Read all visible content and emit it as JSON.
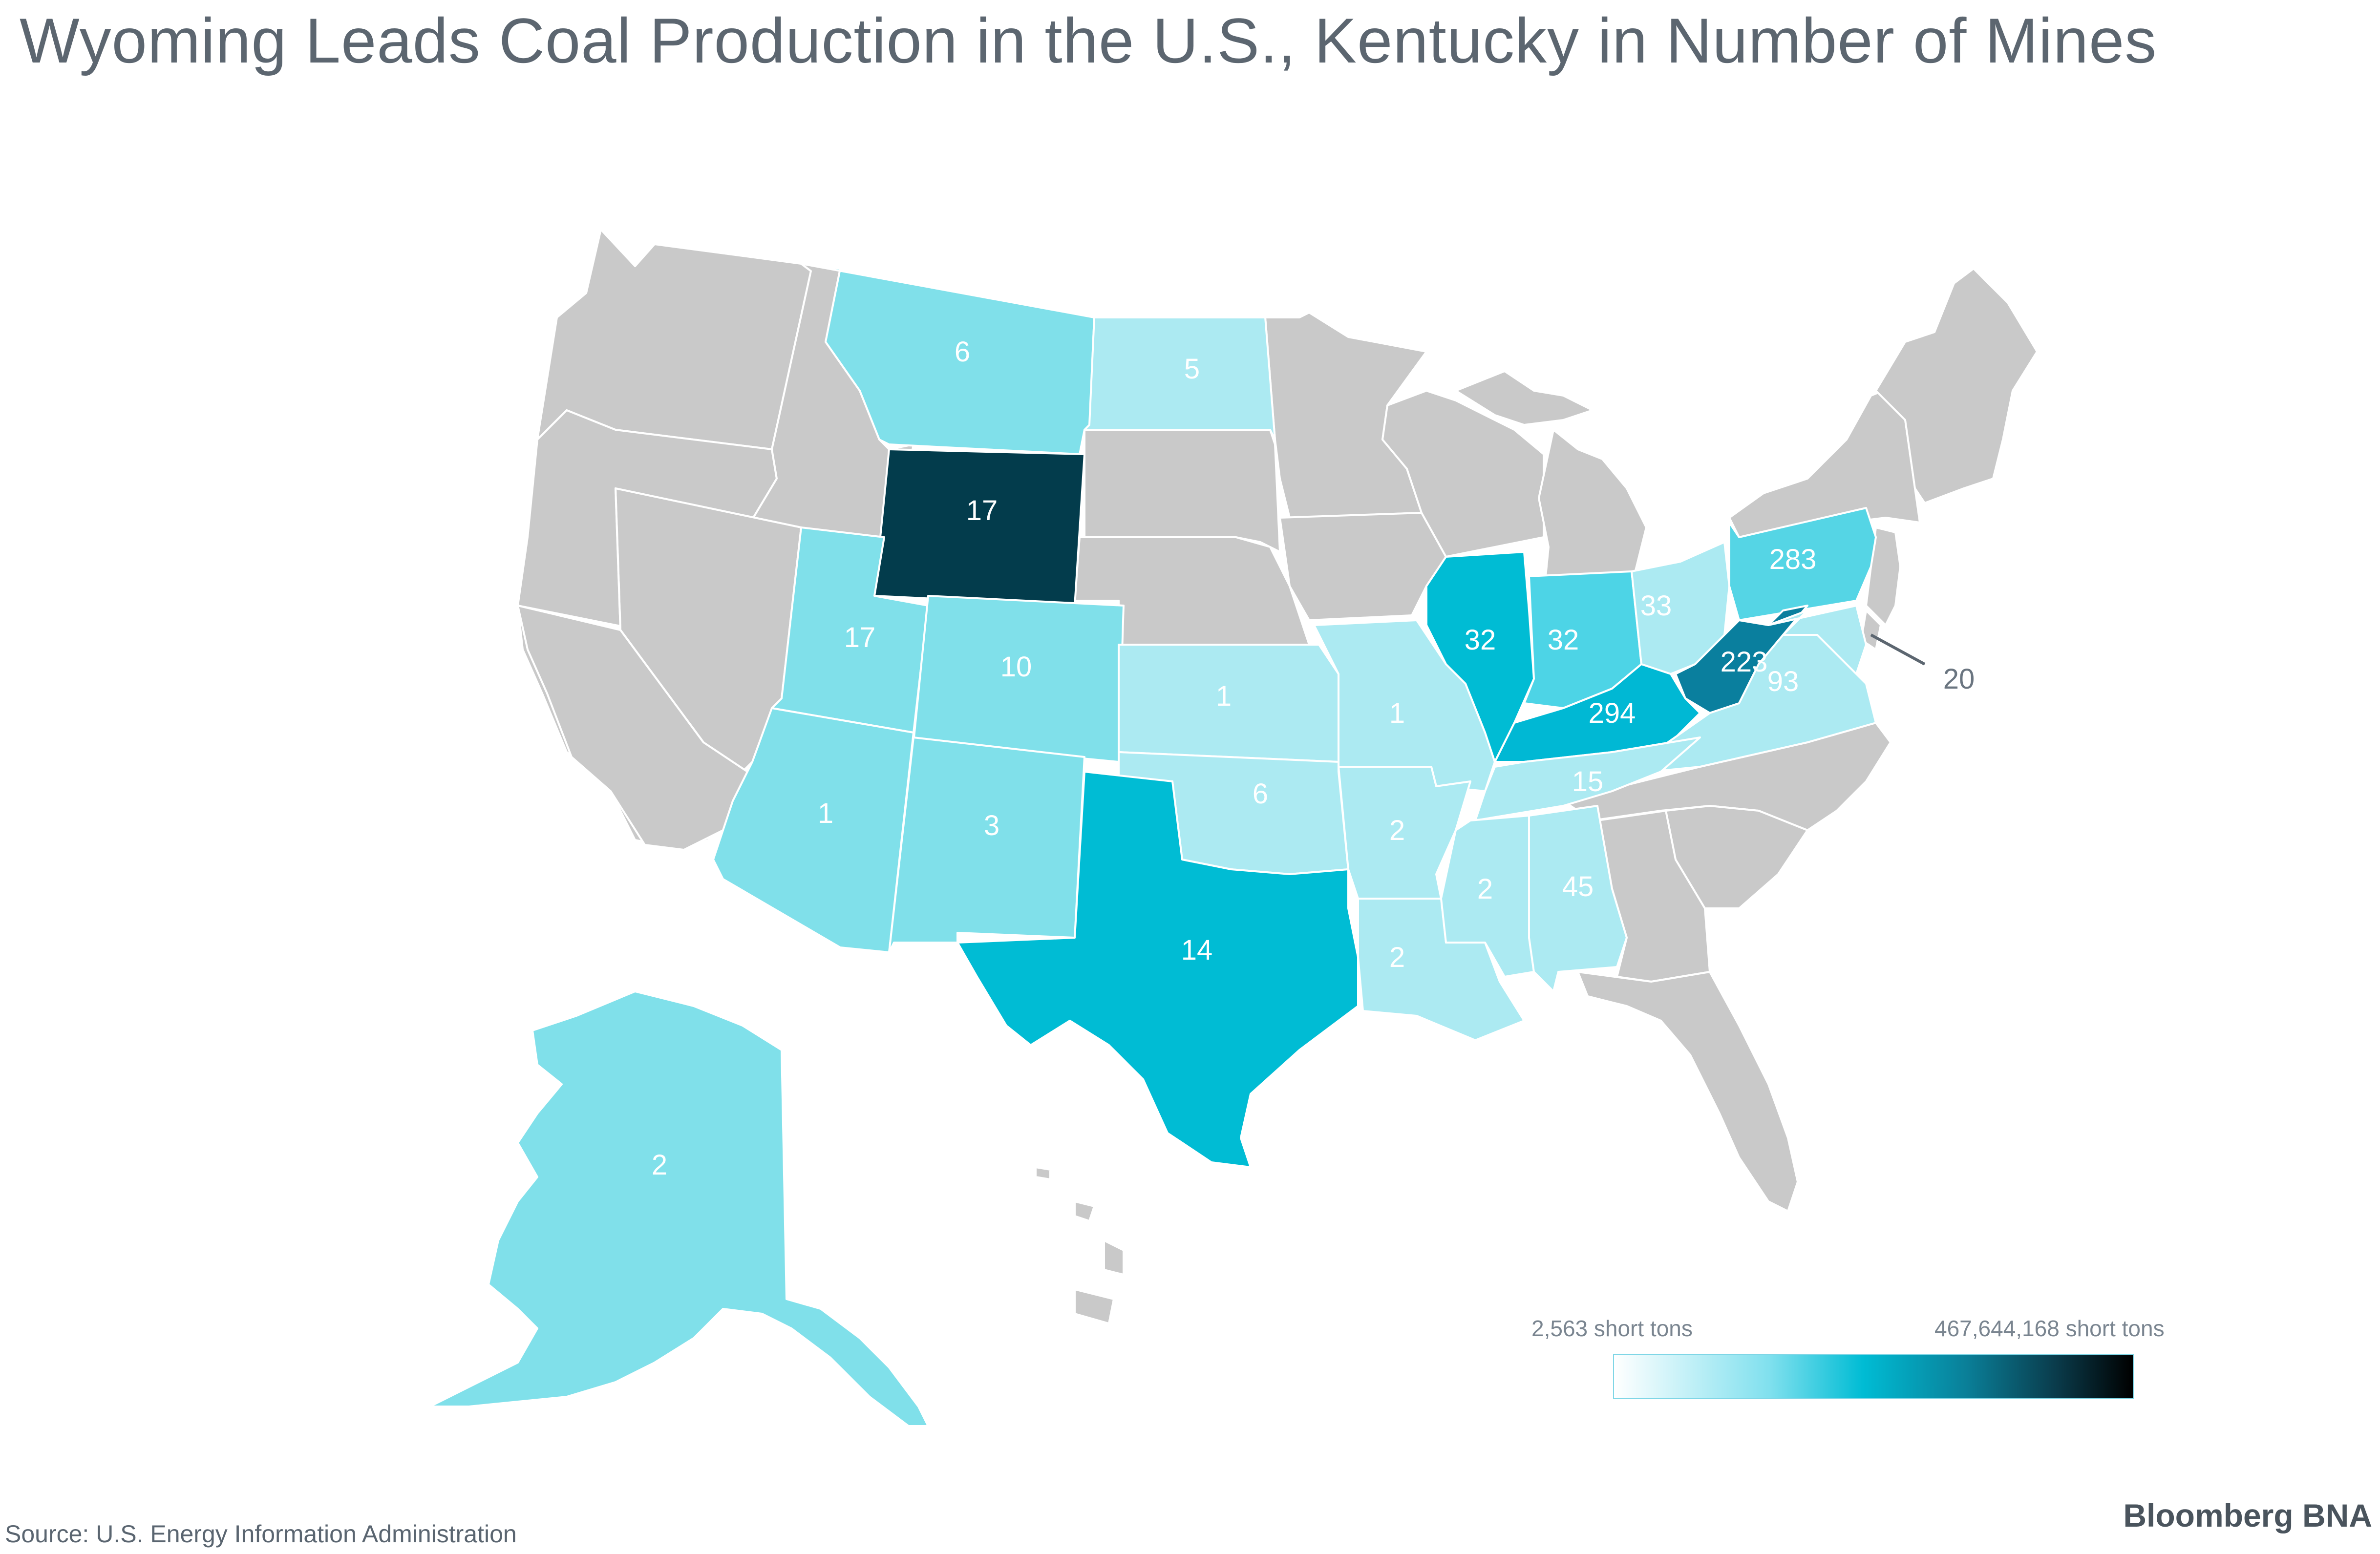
{
  "title": "Wyoming Leads Coal Production in the U.S., Kentucky in Number of Mines",
  "legend": {
    "min_label": "2,563 short tons",
    "max_label": "467,644,168 short tons",
    "colors": [
      "#ffffff",
      "#80e0ee",
      "#00bcd4",
      "#0a7f98",
      "#0a3c4c",
      "#000000"
    ]
  },
  "source": "Source: U.S. Energy Information Administration",
  "brand": {
    "bold": "Bloomberg",
    "regular": "BNA"
  },
  "colors": {
    "no_data": "#c9c9c9",
    "border": "#ffffff"
  },
  "states": [
    {
      "state": "Montana",
      "mines": "6",
      "color": "#80e0ea"
    },
    {
      "state": "North Dakota",
      "mines": "5",
      "color": "#aceaf2"
    },
    {
      "state": "Wyoming",
      "mines": "17",
      "color": "#033c4c"
    },
    {
      "state": "Utah",
      "mines": "17",
      "color": "#80e0ea"
    },
    {
      "state": "Colorado",
      "mines": "10",
      "color": "#80e0ea"
    },
    {
      "state": "Kansas",
      "mines": "1",
      "color": "#aceaf2"
    },
    {
      "state": "Missouri",
      "mines": "1",
      "color": "#aceaf2"
    },
    {
      "state": "Illinois",
      "mines": "32",
      "color": "#00bcd4"
    },
    {
      "state": "Indiana",
      "mines": "32",
      "color": "#4dd4e6"
    },
    {
      "state": "Ohio",
      "mines": "33",
      "color": "#aceaf2"
    },
    {
      "state": "Pennsylvania",
      "mines": "283",
      "color": "#55d5e5"
    },
    {
      "state": "West Virginia",
      "mines": "223",
      "color": "#0a7f9e"
    },
    {
      "state": "Kentucky",
      "mines": "294",
      "color": "#00b8d4"
    },
    {
      "state": "Virginia",
      "mines": "93",
      "color": "#aceaf2"
    },
    {
      "state": "Maryland",
      "mines": "20",
      "color": "#aceaf2"
    },
    {
      "state": "Tennessee",
      "mines": "15",
      "color": "#aceaf2"
    },
    {
      "state": "Arizona",
      "mines": "1",
      "color": "#80e0ea"
    },
    {
      "state": "New Mexico",
      "mines": "3",
      "color": "#80e0ea"
    },
    {
      "state": "Oklahoma",
      "mines": "6",
      "color": "#aceaf2"
    },
    {
      "state": "Arkansas",
      "mines": "2",
      "color": "#aceaf2"
    },
    {
      "state": "Texas",
      "mines": "14",
      "color": "#00bcd4"
    },
    {
      "state": "Louisiana",
      "mines": "2",
      "color": "#aceaf2"
    },
    {
      "state": "Mississippi",
      "mines": "2",
      "color": "#aceaf2"
    },
    {
      "state": "Alabama",
      "mines": "45",
      "color": "#aceaf2"
    },
    {
      "state": "Alaska",
      "mines": "2",
      "color": "#80e0ea"
    }
  ]
}
